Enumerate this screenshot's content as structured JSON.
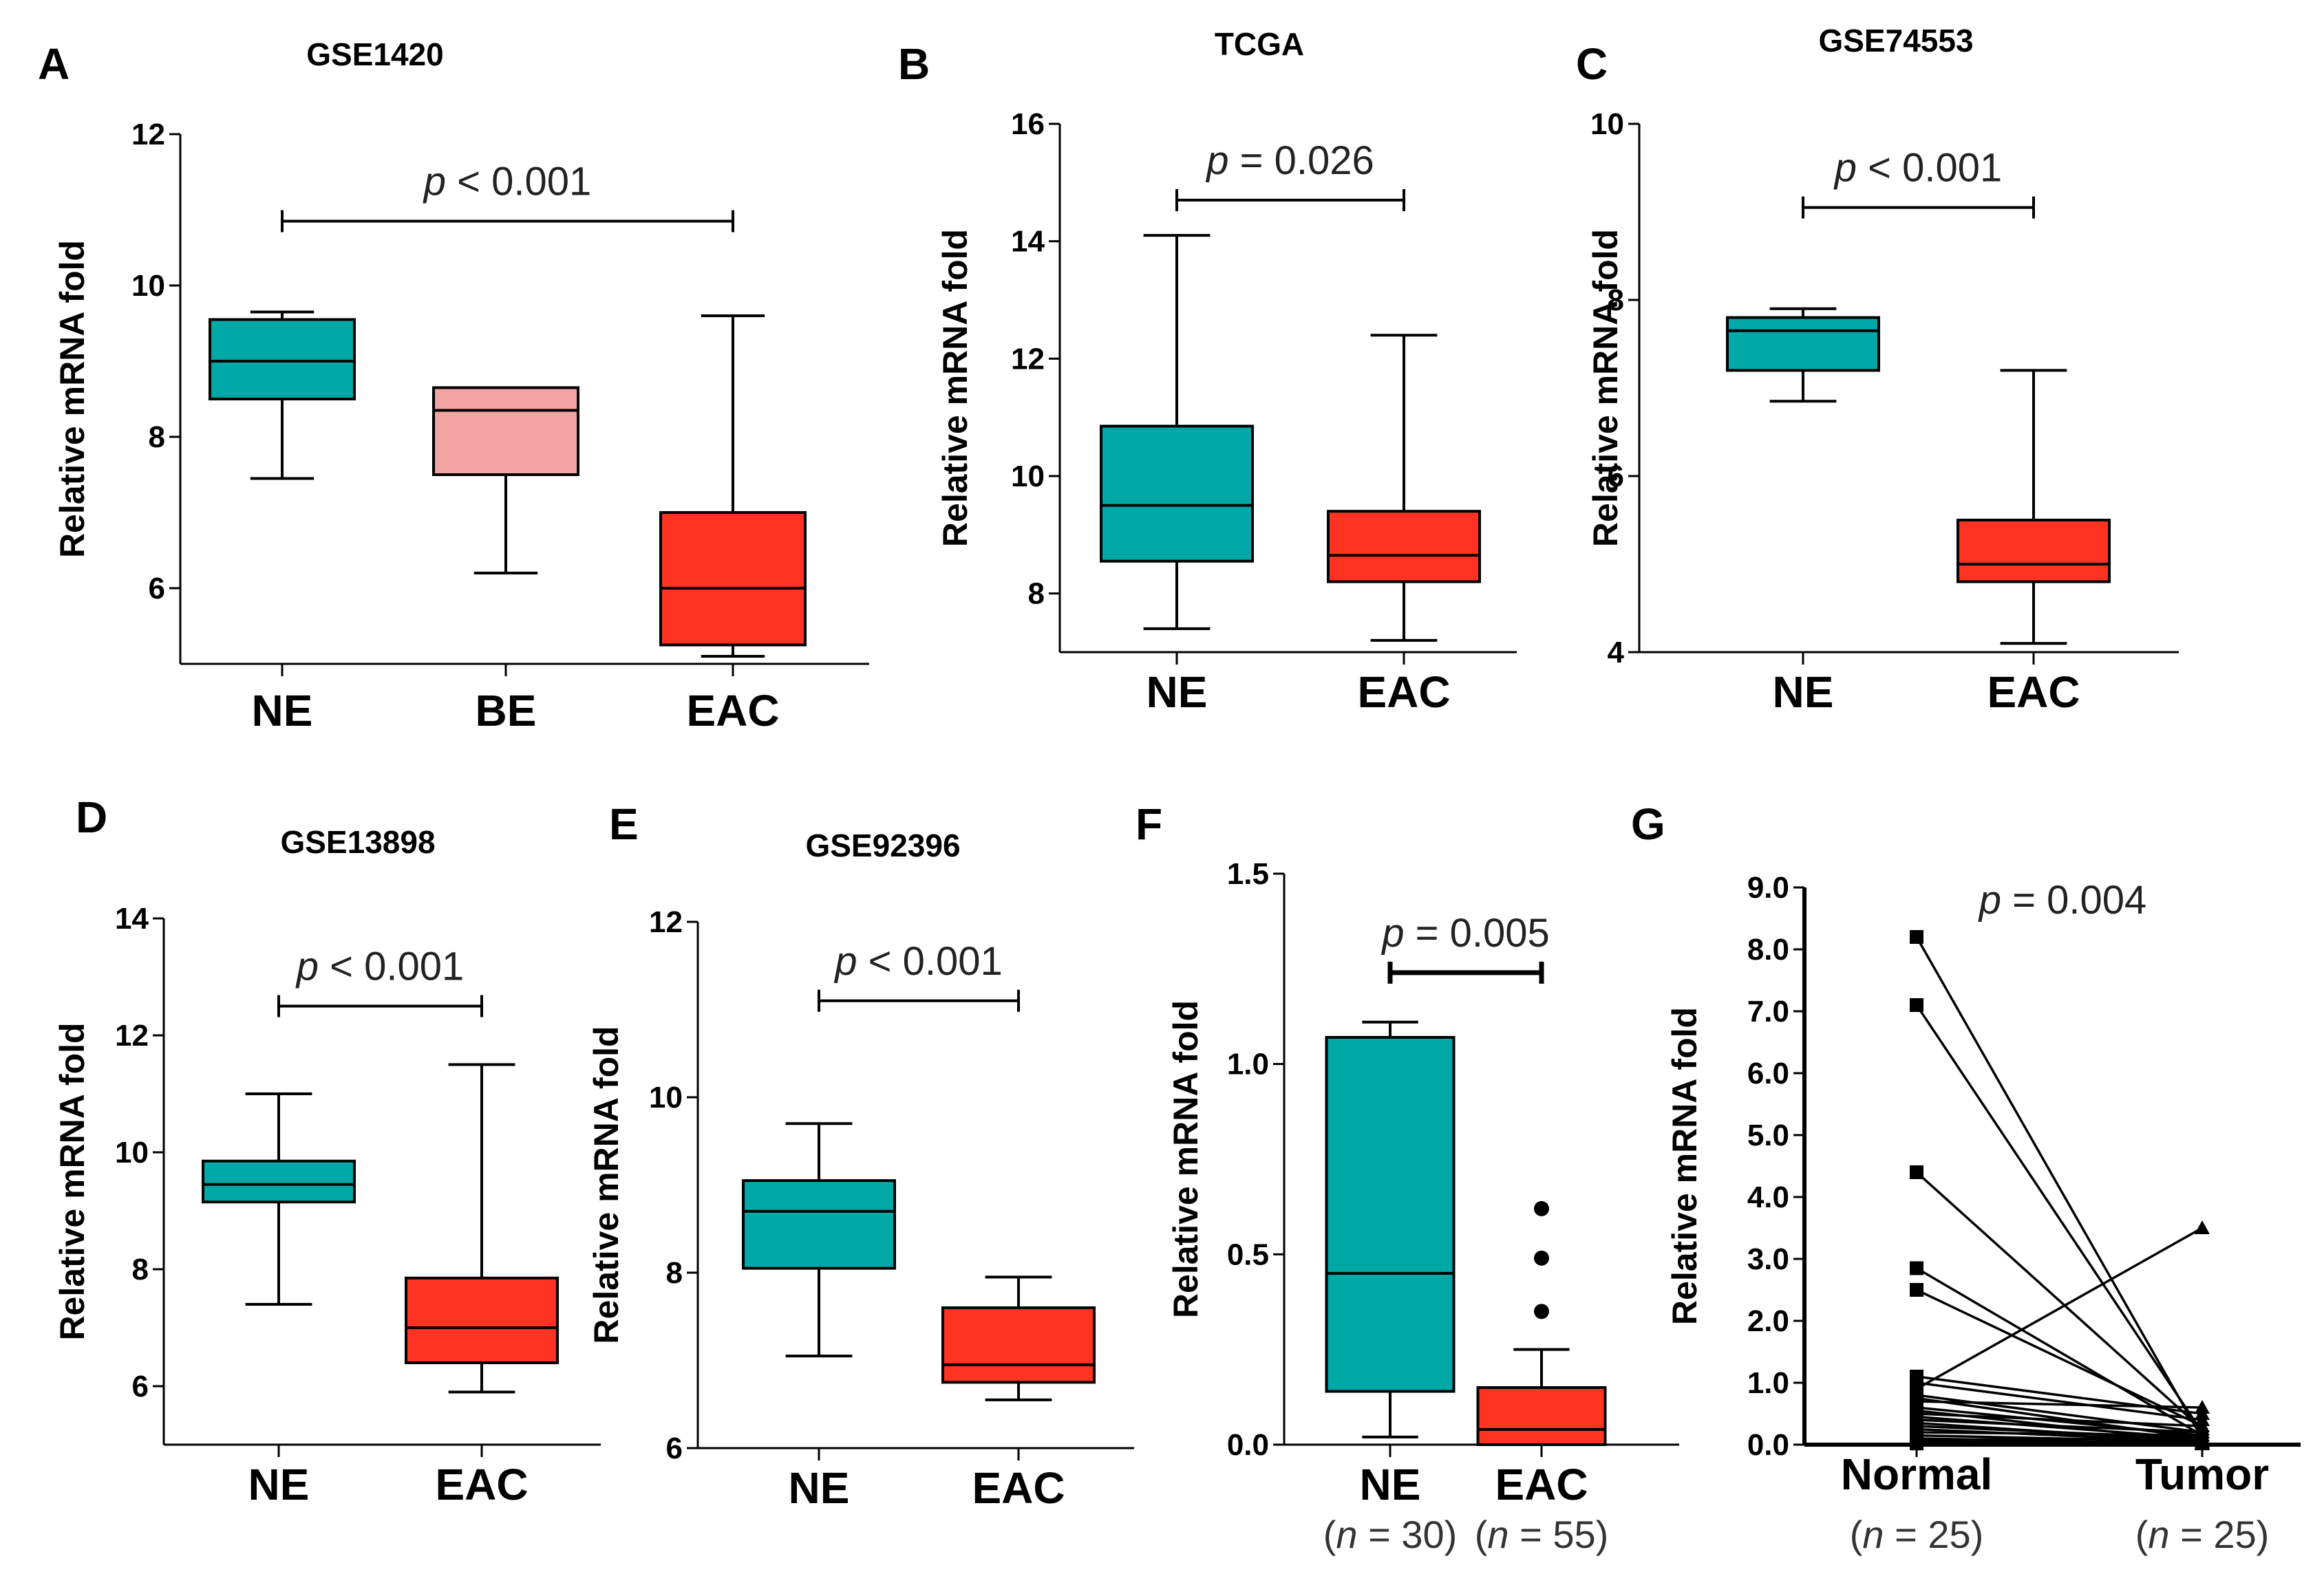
{
  "colors": {
    "ne": "#00A8A8",
    "be": "#F4A3A3",
    "eac": "#FF3322",
    "axis": "#000000"
  },
  "chart_data": [
    {
      "panel": "A",
      "type": "box",
      "title": "GSE1420",
      "ylabel": "Relative mRNA fold",
      "ylim": [
        5,
        12
      ],
      "yticks": [
        6,
        8,
        10,
        12
      ],
      "categories": [
        "NE",
        "BE",
        "EAC"
      ],
      "boxes": [
        {
          "name": "NE",
          "min": 7.45,
          "q1": 8.5,
          "median": 9.0,
          "q3": 9.55,
          "max": 9.65,
          "color": "ne"
        },
        {
          "name": "BE",
          "min": 6.2,
          "q1": 7.5,
          "median": 8.35,
          "q3": 8.65,
          "max": 8.65,
          "color": "be"
        },
        {
          "name": "EAC",
          "min": 5.1,
          "q1": 5.25,
          "median": 6.0,
          "q3": 7.0,
          "max": 9.6,
          "color": "eac"
        }
      ],
      "pvalue": {
        "p": "p",
        "rest": " < 0.001",
        "from": 0,
        "to": 2,
        "y": 10.85
      }
    },
    {
      "panel": "B",
      "type": "box",
      "title": "TCGA",
      "ylabel": "Relative mRNA fold",
      "ylim": [
        7,
        16
      ],
      "yticks": [
        8,
        10,
        12,
        14,
        16
      ],
      "categories": [
        "NE",
        "EAC"
      ],
      "boxes": [
        {
          "name": "NE",
          "min": 7.4,
          "q1": 8.55,
          "median": 9.5,
          "q3": 10.85,
          "max": 14.1,
          "color": "ne"
        },
        {
          "name": "EAC",
          "min": 7.2,
          "q1": 8.2,
          "median": 8.65,
          "q3": 9.4,
          "max": 12.4,
          "color": "eac"
        }
      ],
      "pvalue": {
        "p": "p",
        "rest": " = 0.026",
        "from": 0,
        "to": 1,
        "y": 14.7
      }
    },
    {
      "panel": "C",
      "type": "box",
      "title": "GSE74553",
      "ylabel": "Relative mRNA fold",
      "ylim": [
        4,
        10
      ],
      "yticks": [
        4,
        6,
        8,
        10
      ],
      "categories": [
        "NE",
        "EAC"
      ],
      "boxes": [
        {
          "name": "NE",
          "min": 6.85,
          "q1": 7.2,
          "median": 7.65,
          "q3": 7.8,
          "max": 7.9,
          "color": "ne"
        },
        {
          "name": "EAC",
          "min": 4.1,
          "q1": 4.8,
          "median": 5.0,
          "q3": 5.5,
          "max": 7.2,
          "color": "eac"
        }
      ],
      "pvalue": {
        "p": "p",
        "rest": " < 0.001",
        "from": 0,
        "to": 1,
        "y": 9.05
      }
    },
    {
      "panel": "D",
      "type": "box",
      "title": "GSE13898",
      "ylabel": "Relative mRNA fold",
      "ylim": [
        5,
        14
      ],
      "yticks": [
        6,
        8,
        10,
        12,
        14
      ],
      "categories": [
        "NE",
        "EAC"
      ],
      "boxes": [
        {
          "name": "NE",
          "min": 7.4,
          "q1": 9.15,
          "median": 9.45,
          "q3": 9.85,
          "max": 11.0,
          "color": "ne"
        },
        {
          "name": "EAC",
          "min": 5.9,
          "q1": 6.4,
          "median": 7.0,
          "q3": 7.85,
          "max": 11.5,
          "color": "eac"
        }
      ],
      "pvalue": {
        "p": "p",
        "rest": " < 0.001",
        "from": 0,
        "to": 1,
        "y": 12.5
      }
    },
    {
      "panel": "E",
      "type": "box",
      "title": "GSE92396",
      "ylabel": "Relative mRNA fold",
      "ylim": [
        6,
        12
      ],
      "yticks": [
        6,
        8,
        10,
        12
      ],
      "categories": [
        "NE",
        "EAC"
      ],
      "boxes": [
        {
          "name": "NE",
          "min": 7.05,
          "q1": 8.05,
          "median": 8.7,
          "q3": 9.05,
          "max": 9.7,
          "color": "ne"
        },
        {
          "name": "EAC",
          "min": 6.55,
          "q1": 6.75,
          "median": 6.95,
          "q3": 7.6,
          "max": 7.95,
          "color": "eac"
        }
      ],
      "pvalue": {
        "p": "p",
        "rest": " < 0.001",
        "from": 0,
        "to": 1,
        "y": 11.1
      }
    },
    {
      "panel": "F",
      "type": "box",
      "title": "",
      "ylabel": "Relative mRNA fold",
      "ylim": [
        0,
        1.5
      ],
      "yticks": [
        0.0,
        0.5,
        1.0,
        1.5
      ],
      "yticklabels": [
        "0.0",
        "0.5",
        "1.0",
        "1.5"
      ],
      "categories": [
        "NE",
        "EAC"
      ],
      "nlabels": [
        {
          "open": "(",
          "n": "n",
          "rest": " = 30)"
        },
        {
          "open": "(",
          "n": "n",
          "rest": " = 55)"
        }
      ],
      "boxes": [
        {
          "name": "NE",
          "min": 0.02,
          "q1": 0.14,
          "median": 0.45,
          "q3": 1.07,
          "max": 1.11,
          "color": "ne"
        },
        {
          "name": "EAC",
          "min": 0.0,
          "q1": 0.0,
          "median": 0.04,
          "q3": 0.15,
          "max": 0.25,
          "color": "eac",
          "outliers": [
            0.35,
            0.49,
            0.62
          ]
        }
      ],
      "pvalue": {
        "p": "p",
        "rest": " = 0.005",
        "from": 0,
        "to": 1,
        "y": 1.24
      }
    },
    {
      "panel": "G",
      "type": "paired",
      "title": "",
      "ylabel": "Relative mRNA fold",
      "ylim": [
        0,
        9
      ],
      "yticks": [
        0,
        1,
        2,
        3,
        4,
        5,
        6,
        7,
        8,
        9
      ],
      "yticklabels": [
        "0.0",
        "1.0",
        "2.0",
        "3.0",
        "4.0",
        "5.0",
        "6.0",
        "7.0",
        "8.0",
        "9.0"
      ],
      "categories": [
        "Normal",
        "Tumor"
      ],
      "nlabels": [
        {
          "open": "(",
          "n": "n",
          "rest": " = 25)"
        },
        {
          "open": "(",
          "n": "n",
          "rest": " = 25)"
        }
      ],
      "pairs": [
        [
          8.2,
          0.1
        ],
        [
          7.1,
          0.2
        ],
        [
          4.4,
          0.25
        ],
        [
          2.85,
          0.15
        ],
        [
          2.5,
          0.3
        ],
        [
          1.1,
          0.5
        ],
        [
          1.0,
          0.4
        ],
        [
          0.9,
          3.5
        ],
        [
          0.8,
          0.2
        ],
        [
          0.75,
          0.1
        ],
        [
          0.7,
          0.6
        ],
        [
          0.6,
          0.15
        ],
        [
          0.55,
          0.05
        ],
        [
          0.5,
          0.3
        ],
        [
          0.45,
          0.1
        ],
        [
          0.4,
          0.2
        ],
        [
          0.35,
          0.05
        ],
        [
          0.3,
          0.1
        ],
        [
          0.25,
          0.05
        ],
        [
          0.2,
          0.15
        ],
        [
          0.15,
          0.05
        ],
        [
          0.1,
          0.02
        ],
        [
          0.08,
          0.1
        ],
        [
          0.05,
          0.03
        ],
        [
          0.02,
          0.01
        ]
      ],
      "pvalue": {
        "p": "p",
        "rest": " = 0.004",
        "y": 8.8
      }
    }
  ]
}
